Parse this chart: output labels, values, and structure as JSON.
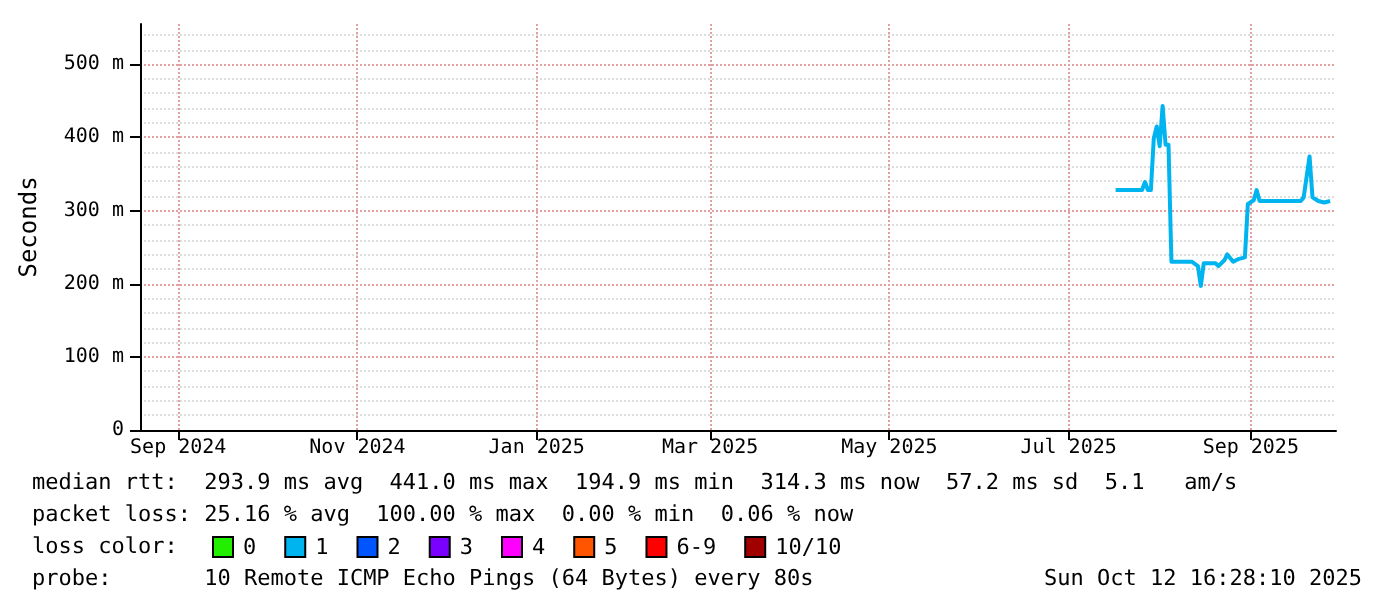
{
  "chart_data": {
    "type": "line",
    "ylabel": "Seconds",
    "legend_title": "loss color:",
    "legend": "bottom",
    "grid": true,
    "marker": "none",
    "x": [
      "2025-07-17",
      "2025-07-26",
      "2025-07-27",
      "2025-07-28",
      "2025-07-29",
      "2025-07-30",
      "2025-07-31",
      "2025-08-01",
      "2025-08-02",
      "2025-08-03",
      "2025-08-04",
      "2025-08-05",
      "2025-08-12",
      "2025-08-14",
      "2025-08-15",
      "2025-08-16",
      "2025-08-20",
      "2025-08-21",
      "2025-08-23",
      "2025-08-24",
      "2025-08-26",
      "2025-08-28",
      "2025-08-30",
      "2025-08-31",
      "2025-09-02",
      "2025-09-03",
      "2025-09-04",
      "2025-09-18",
      "2025-09-19",
      "2025-09-21",
      "2025-09-22",
      "2025-09-24",
      "2025-09-26",
      "2025-09-28"
    ],
    "series": [
      {
        "name": "0",
        "color": "#22ee00",
        "values": [
          null,
          null,
          null,
          null,
          null,
          null,
          null,
          null,
          null,
          null,
          null,
          null,
          null,
          null,
          null,
          null,
          null,
          null,
          null,
          null,
          null,
          null,
          null,
          null,
          null,
          null,
          null,
          null,
          null,
          null,
          null,
          null,
          null,
          null
        ]
      },
      {
        "name": "1",
        "color": "#00b4f0",
        "values": [
          328,
          328,
          339,
          328,
          328,
          399,
          415,
          388,
          443,
          390,
          390,
          230,
          230,
          224,
          197,
          228,
          228,
          224,
          232,
          240,
          230,
          234,
          236,
          309,
          314,
          328,
          313,
          313,
          318,
          374,
          318,
          313,
          311,
          313
        ]
      },
      {
        "name": "2",
        "color": "#0055ff",
        "values": [
          null,
          null,
          null,
          null,
          null,
          null,
          null,
          null,
          null,
          null,
          null,
          null,
          null,
          null,
          null,
          null,
          null,
          null,
          null,
          null,
          null,
          null,
          null,
          null,
          null,
          null,
          null,
          null,
          null,
          null,
          null,
          null,
          null,
          null
        ]
      },
      {
        "name": "3",
        "color": "#7a00ff",
        "values": [
          null,
          null,
          null,
          null,
          null,
          null,
          null,
          null,
          null,
          null,
          null,
          null,
          null,
          null,
          null,
          null,
          null,
          null,
          null,
          null,
          null,
          null,
          null,
          null,
          null,
          null,
          null,
          null,
          null,
          null,
          null,
          null,
          null,
          null
        ]
      },
      {
        "name": "4",
        "color": "#ff00ff",
        "values": [
          null,
          null,
          null,
          null,
          null,
          null,
          null,
          null,
          null,
          null,
          null,
          null,
          null,
          null,
          null,
          null,
          null,
          null,
          null,
          null,
          null,
          null,
          null,
          null,
          null,
          null,
          null,
          null,
          null,
          null,
          null,
          null,
          null,
          null
        ]
      },
      {
        "name": "5",
        "color": "#ff5500",
        "values": [
          null,
          null,
          null,
          null,
          null,
          null,
          null,
          null,
          null,
          null,
          null,
          null,
          null,
          null,
          null,
          null,
          null,
          null,
          null,
          null,
          null,
          null,
          null,
          null,
          null,
          null,
          null,
          null,
          null,
          null,
          null,
          null,
          null,
          null
        ]
      },
      {
        "name": "6-9",
        "color": "#ff0000",
        "values": [
          null,
          null,
          null,
          null,
          null,
          null,
          null,
          null,
          null,
          null,
          null,
          null,
          null,
          null,
          null,
          null,
          null,
          null,
          null,
          null,
          null,
          null,
          null,
          null,
          null,
          null,
          null,
          null,
          null,
          null,
          null,
          null,
          null,
          null
        ]
      },
      {
        "name": "10/10",
        "color": "#a00000",
        "values": [
          null,
          null,
          null,
          null,
          null,
          null,
          null,
          null,
          null,
          null,
          null,
          null,
          null,
          null,
          null,
          null,
          null,
          null,
          null,
          null,
          null,
          null,
          null,
          null,
          null,
          null,
          null,
          null,
          null,
          null,
          null,
          null,
          null,
          null
        ]
      }
    ],
    "xlim": [
      "2024-08-19",
      "2025-09-30"
    ],
    "xticks": [
      {
        "value": "2024-09-01",
        "label": "Sep 2024"
      },
      {
        "value": "2024-11-01",
        "label": "Nov 2024"
      },
      {
        "value": "2025-01-01",
        "label": "Jan 2025"
      },
      {
        "value": "2025-03-01",
        "label": "Mar 2025"
      },
      {
        "value": "2025-05-01",
        "label": "May 2025"
      },
      {
        "value": "2025-07-01",
        "label": "Jul 2025"
      },
      {
        "value": "2025-09-01",
        "label": "Sep 2025"
      }
    ],
    "ylim": [
      0,
      555
    ],
    "yticks": [
      0,
      {
        "value": 100,
        "label": "100 m"
      },
      {
        "value": 200,
        "label": "200 m"
      },
      {
        "value": 300,
        "label": "300 m"
      },
      {
        "value": 400,
        "label": "400 m"
      },
      {
        "value": 500,
        "label": "500 m"
      }
    ],
    "annotations": [
      "median rtt:  293.9 ms avg  441.0 ms max  194.9 ms min  314.3 ms now  57.2 ms sd  5.1   am/s",
      "packet loss: 25.16 % avg  100.00 % max  0.00 % min  0.06 % now",
      "probe:       10 Remote ICMP Echo Pings (64 Bytes) every 80s",
      "Sun Oct 12 16:28:10 2025"
    ]
  }
}
